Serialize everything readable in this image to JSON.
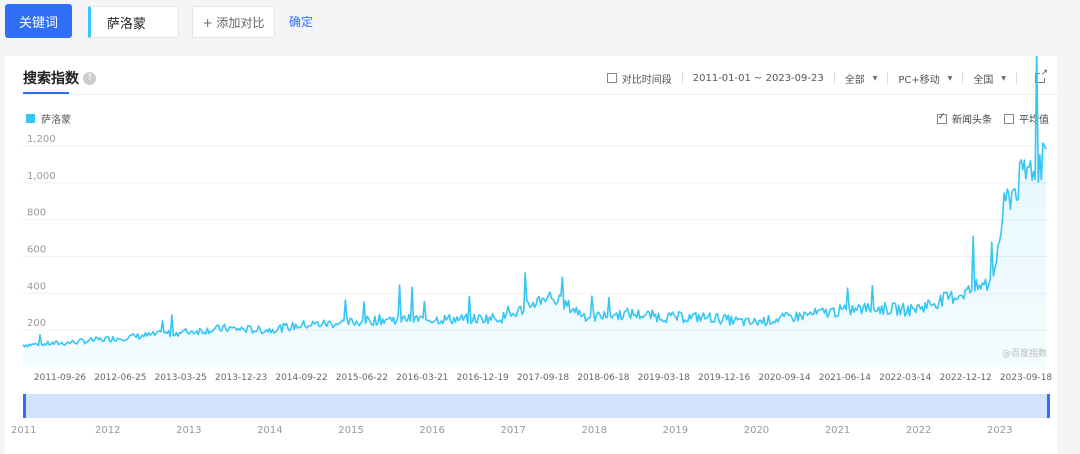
{
  "toolbar": {
    "keyword_button": "关键词",
    "keyword_value": "萨洛蒙",
    "add_compare": "+ 添加对比",
    "confirm": "确定"
  },
  "panel": {
    "title": "搜索指数",
    "help_icon": "question-icon",
    "compare_period": "对比时间段",
    "date_range": "2011-01-01 ~ 2023-09-23",
    "scope": "全部",
    "device": "PC+移动",
    "region": "全国",
    "news_headlines": "新闻头条",
    "average": "平均值",
    "news_checked": true,
    "average_checked": false,
    "compare_checked": false,
    "watermark": "@百度指数"
  },
  "colors": {
    "accent": "#2f6ef6",
    "series": "#36c6f4"
  },
  "chart_data": {
    "type": "area",
    "series": [
      {
        "name": "萨洛蒙",
        "x": [
          "2011-01",
          "2011-07",
          "2012-01",
          "2012-07",
          "2013-01",
          "2013-07",
          "2014-01",
          "2014-07",
          "2015-01",
          "2015-07",
          "2016-01",
          "2016-07",
          "2017-01",
          "2017-07",
          "2018-01",
          "2018-07",
          "2019-01",
          "2019-07",
          "2020-01",
          "2020-07",
          "2021-01",
          "2021-07",
          "2022-01",
          "2022-07",
          "2023-01",
          "2023-03",
          "2023-05",
          "2023-07",
          "2023-09"
        ],
        "values": [
          120,
          130,
          150,
          170,
          190,
          210,
          200,
          230,
          240,
          260,
          260,
          260,
          270,
          390,
          270,
          290,
          270,
          270,
          240,
          270,
          300,
          320,
          310,
          380,
          460,
          900,
          1000,
          1100,
          1150
        ]
      }
    ],
    "y_ticks": [
      "200",
      "400",
      "600",
      "800",
      "1,000",
      "1,200"
    ],
    "ylim": [
      0,
      1200
    ],
    "x_ticks": [
      "2011-09-26",
      "2012-06-25",
      "2013-03-25",
      "2013-12-23",
      "2014-09-22",
      "2015-06-22",
      "2016-03-21",
      "2016-12-19",
      "2017-09-18",
      "2018-06-18",
      "2019-03-18",
      "2019-12-16",
      "2020-09-14",
      "2021-06-14",
      "2022-03-14",
      "2022-12-12",
      "2023-09-18"
    ],
    "year_ticks": [
      "2011",
      "2012",
      "2013",
      "2014",
      "2015",
      "2016",
      "2017",
      "2018",
      "2019",
      "2020",
      "2021",
      "2022",
      "2023"
    ],
    "grid": true
  }
}
